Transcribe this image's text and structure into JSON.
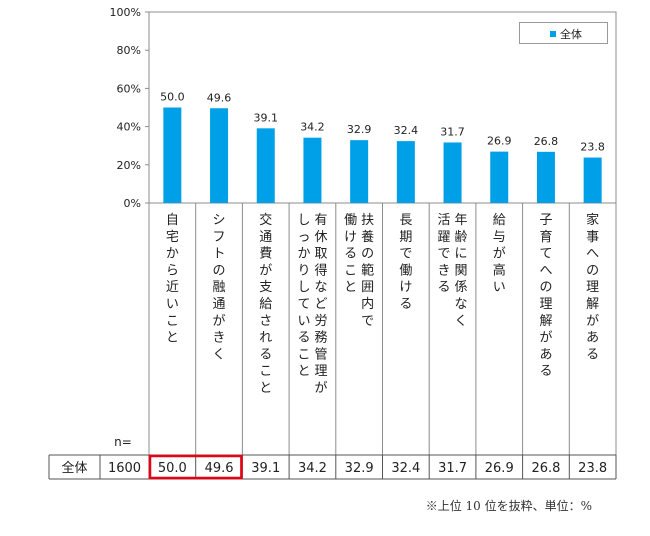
{
  "chart_data": {
    "type": "bar",
    "categories": [
      "自宅から近いこと",
      "シフトの融通がきく",
      "交通費が支給されること",
      "有休取得など労務管理がしっかりしていること",
      "扶養の範囲内で働けること",
      "長期で働ける",
      "年齢に関係なく活躍できる",
      "給与が高い",
      "子育てへの理解がある",
      "家事への理解がある"
    ],
    "category_columns": [
      [
        "自宅から近いこと"
      ],
      [
        "シフトの融通がきく"
      ],
      [
        "交通費が支給されること"
      ],
      [
        "有休取得など労務管理が",
        "しっかりしていること"
      ],
      [
        "扶養の範囲内で",
        "働けること"
      ],
      [
        "長期で働ける"
      ],
      [
        "年齢に関係なく",
        "活躍できる"
      ],
      [
        "給与が高い"
      ],
      [
        "子育てへの理解がある"
      ],
      [
        "家事への理解がある"
      ]
    ],
    "series": [
      {
        "name": "全体",
        "values": [
          50.0,
          49.6,
          39.1,
          34.2,
          32.9,
          32.4,
          31.7,
          26.9,
          26.8,
          23.8
        ]
      }
    ],
    "data_labels": [
      "50.0",
      "49.6",
      "39.1",
      "34.2",
      "32.9",
      "32.4",
      "31.7",
      "26.9",
      "26.8",
      "23.8"
    ],
    "ylim": [
      0,
      100
    ],
    "yticks": [
      "0%",
      "20%",
      "40%",
      "60%",
      "80%",
      "100%"
    ],
    "legend_position": "top-right",
    "table": {
      "n_label": "n=",
      "row_label": "全体",
      "n_value": "1600",
      "values": [
        "50.0",
        "49.6",
        "39.1",
        "34.2",
        "32.9",
        "32.4",
        "31.7",
        "26.9",
        "26.8",
        "23.8"
      ],
      "highlighted": [
        0,
        1
      ]
    },
    "bar_color": "#00a0e9",
    "highlight_color": "#e60012"
  },
  "footnote": "※上位 10 位を抜粋、単位：%"
}
